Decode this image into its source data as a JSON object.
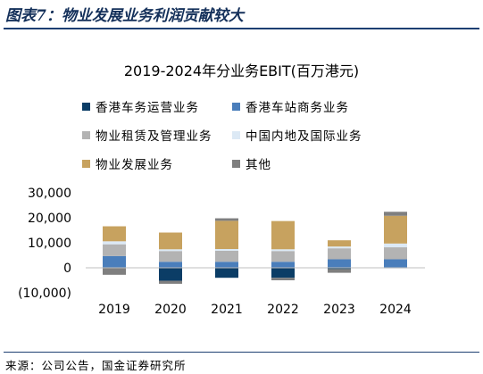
{
  "figure_title": "图表7：物业发展业务利润贡献较大",
  "source": "来源：公司公告，国金证券研究所",
  "colors": {
    "hk_transport": "#0b3d66",
    "hk_station": "#4a7ebb",
    "property_rental": "#b3b3b3",
    "mainland": "#dce9f5",
    "property_dev": "#c7a25f",
    "other": "#7f7f7f",
    "title": "#14305a",
    "rule": "#1d3f72"
  },
  "chart_data": {
    "type": "bar",
    "stacked": true,
    "title": "2019-2024年分业务EBIT(百万港元)",
    "xlabel": "",
    "ylabel": "",
    "ylim": [
      -10000,
      30000
    ],
    "yticks": [
      -10000,
      0,
      10000,
      20000,
      30000
    ],
    "ytick_labels": [
      "(10,000)",
      "0",
      "10,000",
      "20,000",
      "30,000"
    ],
    "grid": false,
    "legend_position": "top",
    "categories": [
      "2019",
      "2020",
      "2021",
      "2022",
      "2023",
      "2024"
    ],
    "series": [
      {
        "name": "香港车务运营业务",
        "color_key": "hk_transport",
        "values": [
          0,
          -5200,
          -4000,
          -4000,
          -500,
          -200
        ]
      },
      {
        "name": "香港车站商务业务",
        "color_key": "hk_station",
        "values": [
          4700,
          2400,
          2400,
          2400,
          3400,
          3400
        ]
      },
      {
        "name": "物业租赁及管理业务",
        "color_key": "property_rental",
        "values": [
          4700,
          4300,
          4400,
          4300,
          4400,
          4800
        ]
      },
      {
        "name": "中国内地及国际业务",
        "color_key": "mainland",
        "values": [
          1200,
          700,
          700,
          700,
          700,
          1500
        ]
      },
      {
        "name": "物业发展业务",
        "color_key": "property_dev",
        "values": [
          6000,
          6700,
          11300,
          11300,
          2500,
          11100
        ]
      },
      {
        "name": "其他",
        "color_key": "other",
        "values": [
          -2800,
          -1200,
          1000,
          -1000,
          -1500,
          1600
        ]
      }
    ]
  }
}
